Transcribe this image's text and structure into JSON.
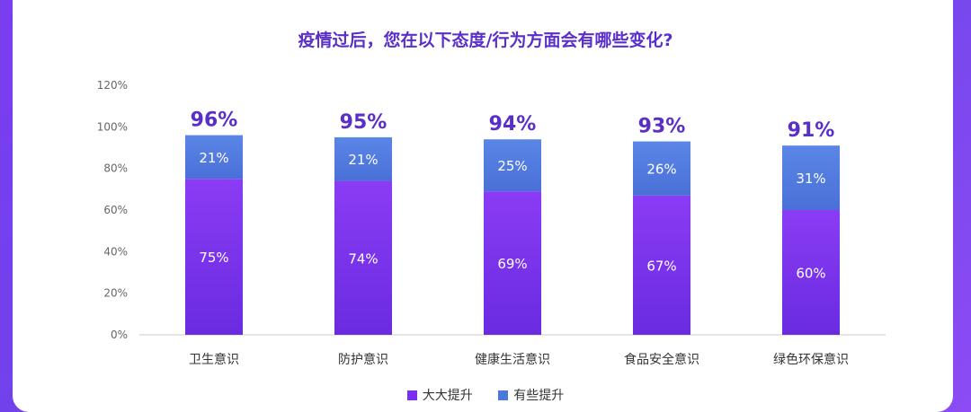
{
  "title": "疫情过后，您在以下态度/行为方面会有哪些变化?",
  "chart_data": {
    "type": "bar",
    "stacked": true,
    "categories": [
      "卫生意识",
      "防护意识",
      "健康生活意识",
      "食品安全意识",
      "绿色环保意识"
    ],
    "series": [
      {
        "name": "大大提升",
        "values": [
          75,
          74,
          69,
          67,
          60
        ],
        "color": "#7a2ff0"
      },
      {
        "name": "有些提升",
        "values": [
          21,
          21,
          25,
          26,
          31
        ],
        "color": "#4a78dc"
      }
    ],
    "totals": [
      96,
      95,
      94,
      93,
      91
    ],
    "ylim": [
      0,
      120
    ],
    "yticks": [
      "0%",
      "20%",
      "40%",
      "60%",
      "80%",
      "100%",
      "120%"
    ],
    "legend_position": "bottom",
    "grid": false
  }
}
